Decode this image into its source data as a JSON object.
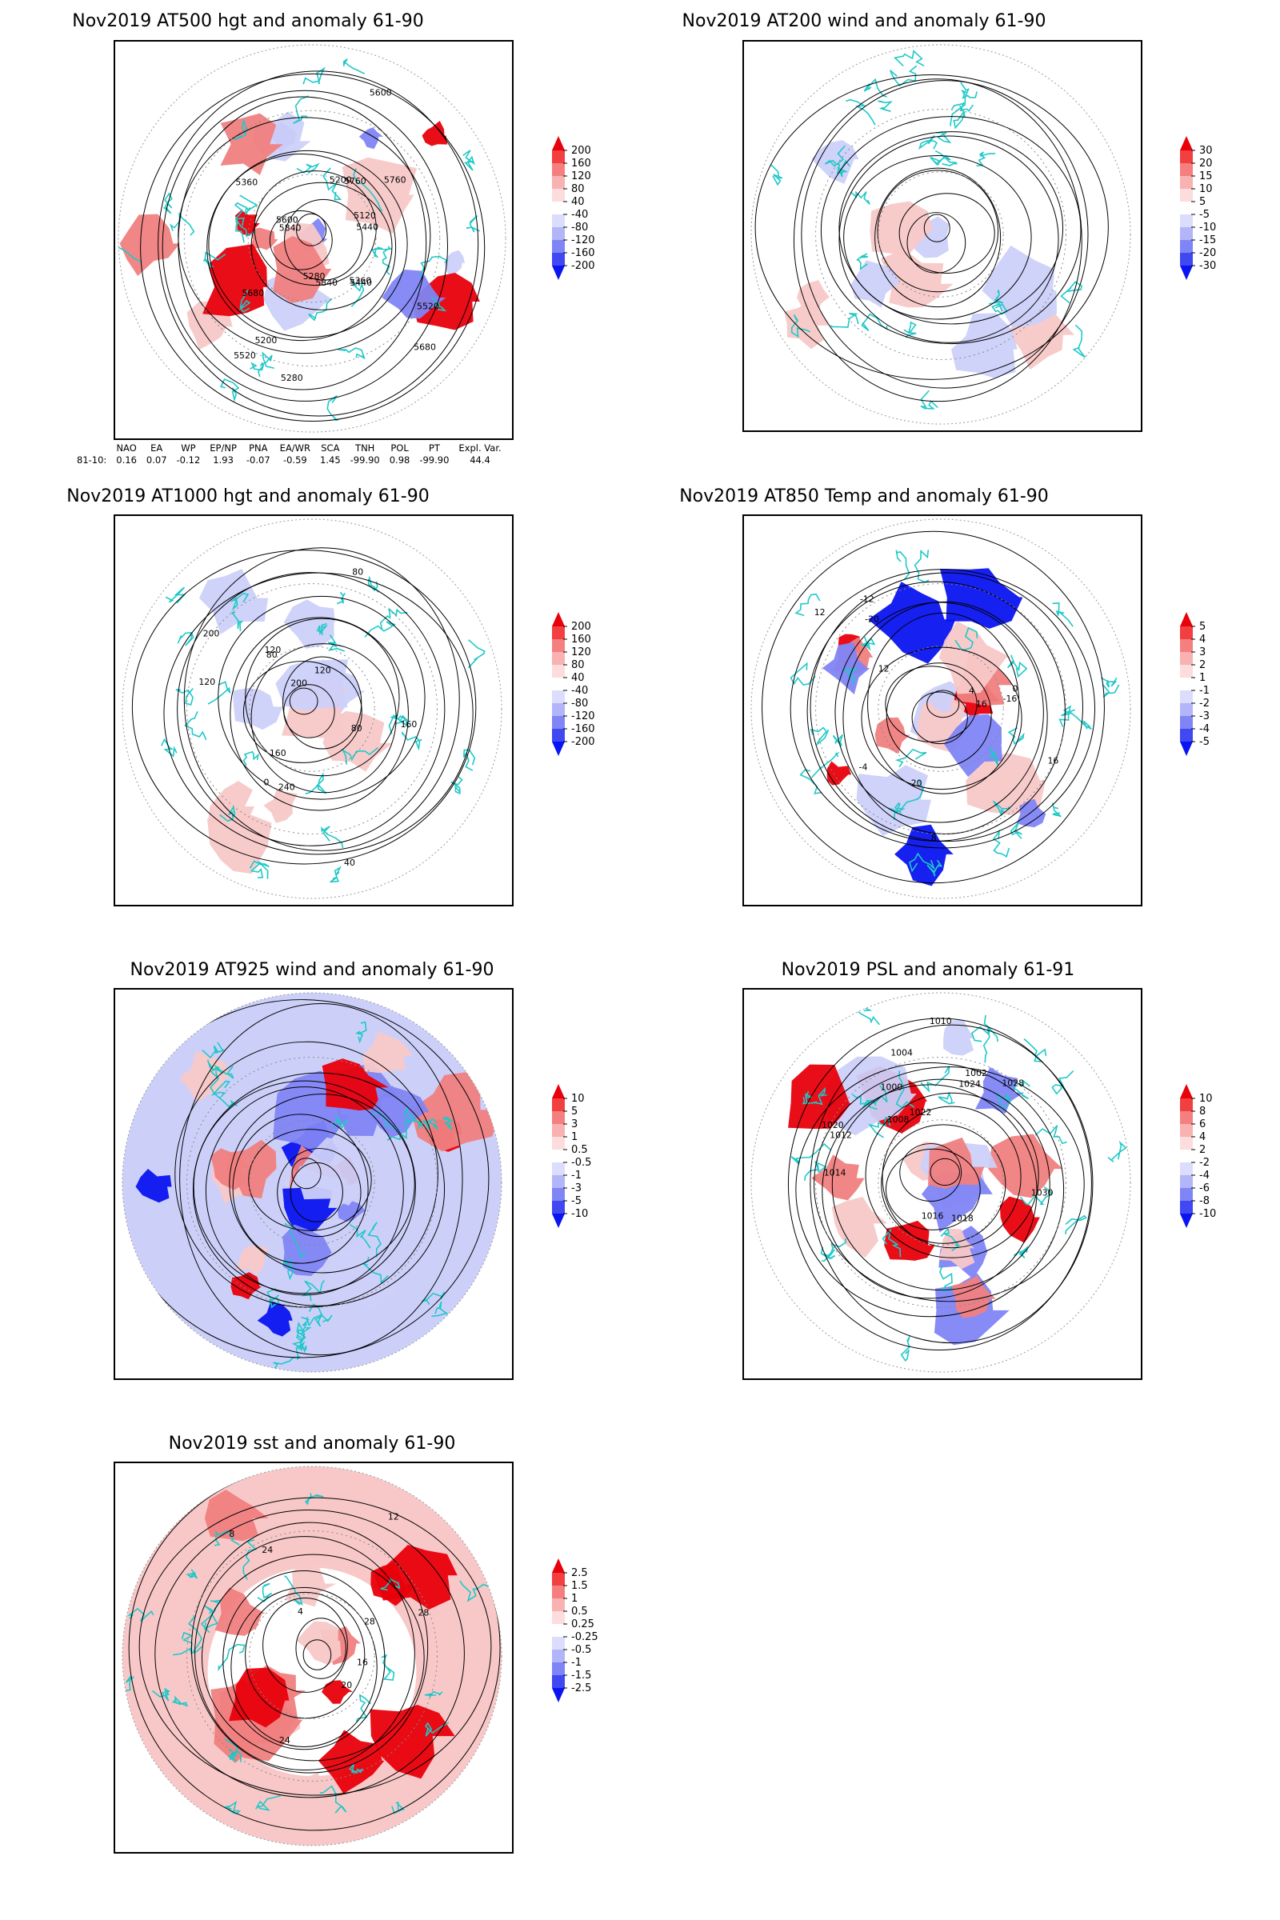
{
  "panels": [
    {
      "id": "p1",
      "title": "Nov2019 AT500 hgt and anomaly 61-90",
      "colorbar": [
        "200",
        "160",
        "120",
        "80",
        "40",
        "-40",
        "-80",
        "-120",
        "-160",
        "-200"
      ],
      "contour_labels": [
        "5840",
        "5760",
        "5680",
        "5600",
        "5520",
        "5440",
        "5360",
        "5280",
        "5200",
        "5120",
        "5200",
        "5280",
        "5360",
        "5440",
        "5520",
        "5600",
        "5680",
        "5760",
        "5840"
      ],
      "fill": "mixed"
    },
    {
      "id": "p2",
      "title": "Nov2019 AT200 wind and anomaly 61-90",
      "colorbar": [
        "30",
        "20",
        "15",
        "10",
        "5",
        "-5",
        "-10",
        "-15",
        "-20",
        "-30"
      ],
      "contour_labels": [],
      "fill": "light"
    },
    {
      "id": "p3",
      "title": "Nov2019 AT1000 hgt and anomaly 61-90",
      "colorbar": [
        "200",
        "160",
        "120",
        "80",
        "40",
        "-40",
        "-80",
        "-120",
        "-160",
        "-200"
      ],
      "contour_labels": [
        "80",
        "160",
        "120",
        "40",
        "0",
        "240",
        "200",
        "80",
        "120",
        "160",
        "200",
        "80",
        "120"
      ],
      "fill": "light"
    },
    {
      "id": "p4",
      "title": "Nov2019 AT850 Temp and anomaly 61-90",
      "colorbar": [
        "5",
        "4",
        "3",
        "2",
        "1",
        "-1",
        "-2",
        "-3",
        "-4",
        "-5"
      ],
      "contour_labels": [
        "16",
        "12",
        "8",
        "4",
        "0",
        "-4",
        "-12",
        "-16",
        "-20",
        "12",
        "16",
        "20"
      ],
      "fill": "strong"
    },
    {
      "id": "p5",
      "title": "Nov2019 AT925 wind and anomaly 61-90",
      "colorbar": [
        "10",
        "5",
        "3",
        "1",
        "0.5",
        "-0.5",
        "-1",
        "-3",
        "-5",
        "-10"
      ],
      "contour_labels": [],
      "fill": "full"
    },
    {
      "id": "p6",
      "title": "Nov2019 PSL and anomaly 61-91",
      "colorbar": [
        "10",
        "8",
        "6",
        "4",
        "2",
        "-2",
        "-4",
        "-6",
        "-8",
        "-10"
      ],
      "contour_labels": [
        "1008",
        "1010",
        "1014",
        "1016",
        "1018",
        "1020",
        "1022",
        "1024",
        "1028",
        "1030",
        "1002",
        "1000",
        "1004",
        "1012"
      ],
      "fill": "mixed"
    },
    {
      "id": "p7",
      "title": "Nov2019 sst and anomaly 61-90",
      "colorbar": [
        "2.5",
        "1.5",
        "1",
        "0.5",
        "0.25",
        "-0.25",
        "-0.5",
        "-1",
        "-1.5",
        "-2.5"
      ],
      "contour_labels": [
        "28",
        "24",
        "20",
        "16",
        "12",
        "8",
        "4",
        "24",
        "28"
      ],
      "fill": "sst"
    }
  ],
  "indices": {
    "headers": [
      "NAO",
      "EA",
      "WP",
      "EP/NP",
      "PNA",
      "EA/WR",
      "SCA",
      "TNH",
      "POL",
      "PT",
      "Expl. Var."
    ],
    "row_label": "81-10:",
    "values": [
      "0.16",
      "0.07",
      "-0.12",
      "1.93",
      "-0.07",
      "-0.59",
      "1.45",
      "-99.90",
      "0.98",
      "-99.90",
      "44.4"
    ]
  },
  "colors": {
    "positive_strong": "#e8000b",
    "positive_mid": "#f07f7f",
    "positive_light": "#f8c8c8",
    "negative_strong": "#0a14f0",
    "negative_mid": "#7f85f5",
    "negative_light": "#ccd0f9",
    "coastline": "#1ec8c8",
    "contour": "#000000"
  }
}
